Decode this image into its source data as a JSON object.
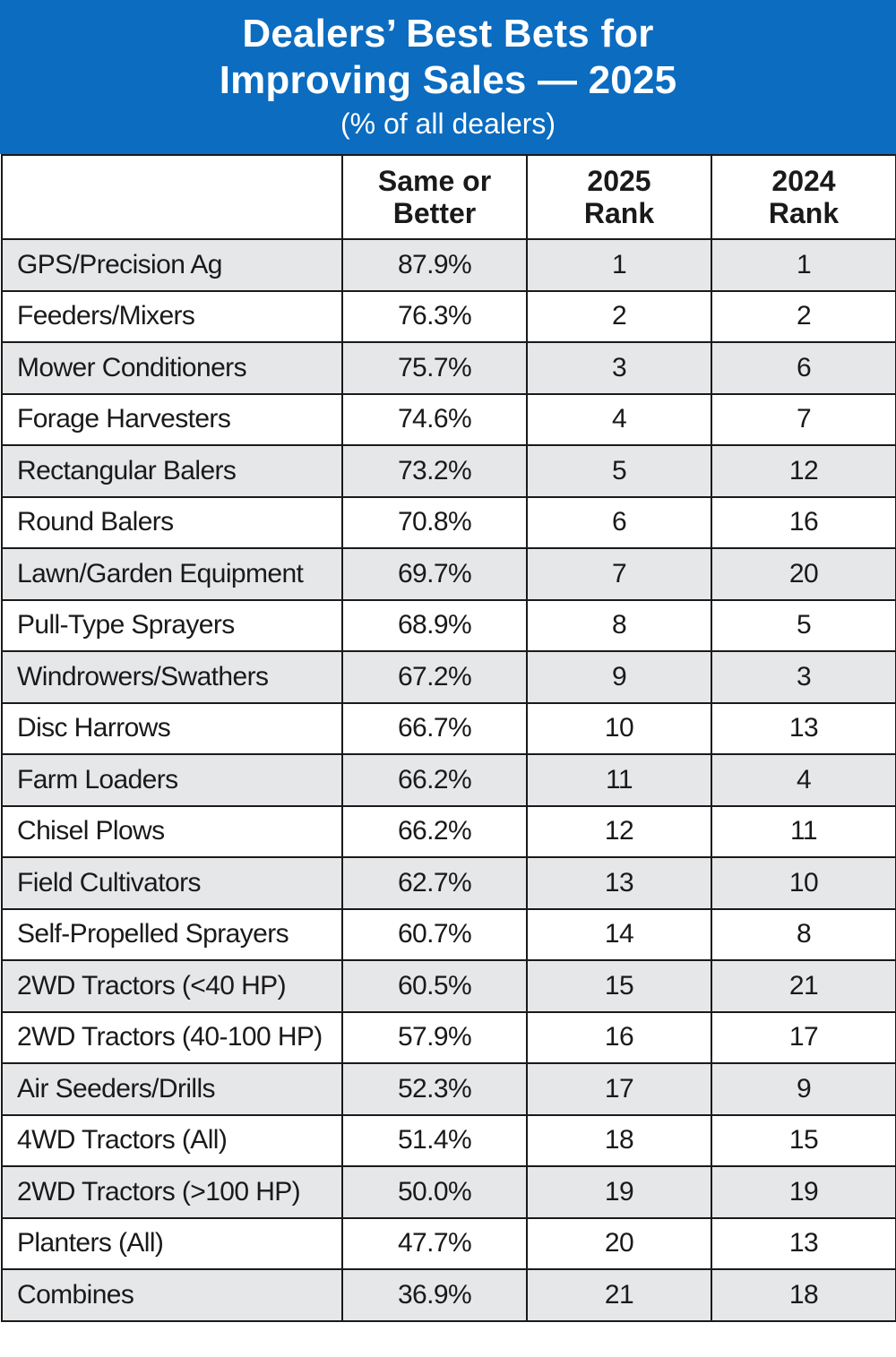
{
  "colors": {
    "header_bg": "#0b6cc0",
    "header_text": "#ffffff",
    "row_shade": "#e6e7e9",
    "row_plain": "#ffffff",
    "grid_line": "#1a1a1a"
  },
  "chart_data": {
    "type": "table",
    "title_lines": [
      "Dealers’ Best Bets for",
      "Improving Sales — 2025"
    ],
    "subtitle": "(% of all dealers)",
    "columns": [
      {
        "lines": [
          "",
          ""
        ]
      },
      {
        "lines": [
          "Same or",
          "Better"
        ]
      },
      {
        "lines": [
          "2025",
          "Rank"
        ]
      },
      {
        "lines": [
          "2024",
          "Rank"
        ]
      }
    ],
    "rows": [
      {
        "category": "GPS/Precision Ag",
        "same_or_better": "87.9%",
        "rank_2025": "1",
        "rank_2024": "1"
      },
      {
        "category": "Feeders/Mixers",
        "same_or_better": "76.3%",
        "rank_2025": "2",
        "rank_2024": "2"
      },
      {
        "category": "Mower Conditioners",
        "same_or_better": "75.7%",
        "rank_2025": "3",
        "rank_2024": "6"
      },
      {
        "category": "Forage Harvesters",
        "same_or_better": "74.6%",
        "rank_2025": "4",
        "rank_2024": "7"
      },
      {
        "category": "Rectangular Balers",
        "same_or_better": "73.2%",
        "rank_2025": "5",
        "rank_2024": "12"
      },
      {
        "category": "Round Balers",
        "same_or_better": "70.8%",
        "rank_2025": "6",
        "rank_2024": "16"
      },
      {
        "category": "Lawn/Garden Equipment",
        "same_or_better": "69.7%",
        "rank_2025": "7",
        "rank_2024": "20"
      },
      {
        "category": "Pull-Type Sprayers",
        "same_or_better": "68.9%",
        "rank_2025": "8",
        "rank_2024": "5"
      },
      {
        "category": "Windrowers/Swathers",
        "same_or_better": "67.2%",
        "rank_2025": "9",
        "rank_2024": "3"
      },
      {
        "category": "Disc Harrows",
        "same_or_better": "66.7%",
        "rank_2025": "10",
        "rank_2024": "13"
      },
      {
        "category": "Farm Loaders",
        "same_or_better": "66.2%",
        "rank_2025": "11",
        "rank_2024": "4"
      },
      {
        "category": "Chisel Plows",
        "same_or_better": "66.2%",
        "rank_2025": "12",
        "rank_2024": "11"
      },
      {
        "category": "Field Cultivators",
        "same_or_better": "62.7%",
        "rank_2025": "13",
        "rank_2024": "10"
      },
      {
        "category": "Self-Propelled Sprayers",
        "same_or_better": "60.7%",
        "rank_2025": "14",
        "rank_2024": "8"
      },
      {
        "category": "2WD Tractors (<40 HP)",
        "same_or_better": "60.5%",
        "rank_2025": "15",
        "rank_2024": "21"
      },
      {
        "category": "2WD Tractors (40-100 HP)",
        "same_or_better": "57.9%",
        "rank_2025": "16",
        "rank_2024": "17"
      },
      {
        "category": "Air Seeders/Drills",
        "same_or_better": "52.3%",
        "rank_2025": "17",
        "rank_2024": "9"
      },
      {
        "category": "4WD Tractors (All)",
        "same_or_better": "51.4%",
        "rank_2025": "18",
        "rank_2024": "15"
      },
      {
        "category": "2WD Tractors (>100 HP)",
        "same_or_better": "50.0%",
        "rank_2025": "19",
        "rank_2024": "19"
      },
      {
        "category": "Planters (All)",
        "same_or_better": "47.7%",
        "rank_2025": "20",
        "rank_2024": "13"
      },
      {
        "category": "Combines",
        "same_or_better": "36.9%",
        "rank_2025": "21",
        "rank_2024": "18"
      }
    ]
  }
}
